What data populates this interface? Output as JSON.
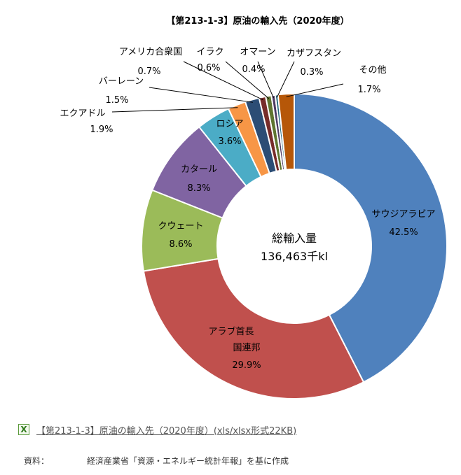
{
  "chart_data": {
    "type": "pie",
    "variant": "donut",
    "title": "【第213-1-3】原油の輸入先（2020年度）",
    "center_label": {
      "line1": "総輸入量",
      "line2": "136,463千kl"
    },
    "slices": [
      {
        "name": "サウジアラビア",
        "value": 42.5,
        "label": "42.5%",
        "color": "#4F81BD"
      },
      {
        "name": "アラブ首長国連邦",
        "value": 29.9,
        "label": "29.9%",
        "color": "#C0504D"
      },
      {
        "name": "クウェート",
        "value": 8.6,
        "label": "8.6%",
        "color": "#9BBB59"
      },
      {
        "name": "カタール",
        "value": 8.3,
        "label": "8.3%",
        "color": "#8064A2"
      },
      {
        "name": "ロシア",
        "value": 3.6,
        "label": "3.6%",
        "color": "#4BACC6"
      },
      {
        "name": "エクアドル",
        "value": 1.9,
        "label": "1.9%",
        "color": "#F79646"
      },
      {
        "name": "バーレーン",
        "value": 1.5,
        "label": "1.5%",
        "color": "#2C4D75"
      },
      {
        "name": "アメリカ合衆国",
        "value": 0.7,
        "label": "0.7%",
        "color": "#772C2A"
      },
      {
        "name": "イラク",
        "value": 0.6,
        "label": "0.6%",
        "color": "#5F7530"
      },
      {
        "name": "オマーン",
        "value": 0.4,
        "label": "0.4%",
        "color": "#4D3B62"
      },
      {
        "name": "カザフスタン",
        "value": 0.3,
        "label": "0.3%",
        "color": "#276A7C"
      },
      {
        "name": "その他",
        "value": 1.7,
        "label": "1.7%",
        "color": "#B65708"
      }
    ]
  },
  "download": {
    "icon": "excel-file-icon",
    "link_text": "【第213-1-3】原油の輸入先（2020年度）(xls/xlsx形式22KB)"
  },
  "source": {
    "label": "資料：",
    "text": "経済産業省「資源・エネルギー統計年報」を基に作成"
  }
}
